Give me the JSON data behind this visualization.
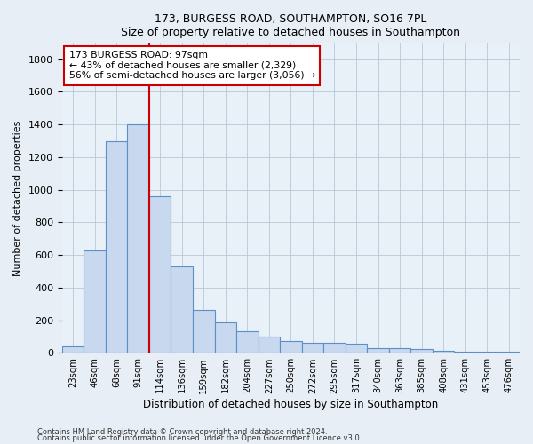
{
  "title": "173, BURGESS ROAD, SOUTHAMPTON, SO16 7PL",
  "subtitle": "Size of property relative to detached houses in Southampton",
  "xlabel": "Distribution of detached houses by size in Southampton",
  "ylabel": "Number of detached properties",
  "footnote1": "Contains HM Land Registry data © Crown copyright and database right 2024.",
  "footnote2": "Contains public sector information licensed under the Open Government Licence v3.0.",
  "categories": [
    "23sqm",
    "46sqm",
    "68sqm",
    "91sqm",
    "114sqm",
    "136sqm",
    "159sqm",
    "182sqm",
    "204sqm",
    "227sqm",
    "250sqm",
    "272sqm",
    "295sqm",
    "317sqm",
    "340sqm",
    "363sqm",
    "385sqm",
    "408sqm",
    "431sqm",
    "453sqm",
    "476sqm"
  ],
  "values": [
    40,
    630,
    1300,
    1400,
    960,
    530,
    265,
    185,
    130,
    100,
    75,
    60,
    60,
    55,
    30,
    30,
    25,
    10,
    8,
    8,
    8
  ],
  "bar_color": "#c8d8ee",
  "bar_edge_color": "#5b8fc9",
  "vline_color": "#cc0000",
  "vline_x_index": 3.5,
  "annotation_text": "173 BURGESS ROAD: 97sqm\n← 43% of detached houses are smaller (2,329)\n56% of semi-detached houses are larger (3,056) →",
  "annotation_box_color": "#ffffff",
  "annotation_box_edgecolor": "#cc0000",
  "ylim": [
    0,
    1900
  ],
  "yticks": [
    0,
    200,
    400,
    600,
    800,
    1000,
    1200,
    1400,
    1600,
    1800
  ],
  "bg_color": "#e8eef5",
  "plot_bg_color": "#e8f0f8",
  "grid_color": "#b8c8d8"
}
